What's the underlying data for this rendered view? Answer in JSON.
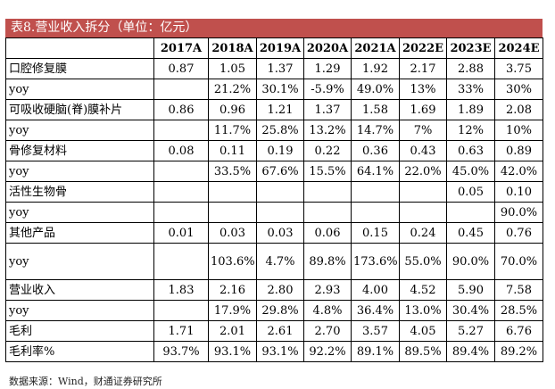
{
  "title": "表8.营业收入拆分（单位：亿元）",
  "headers": [
    "",
    "2017A",
    "2018A",
    "2019A",
    "2020A",
    "2021A",
    "2022E",
    "2023E",
    "2024E"
  ],
  "rows": [
    {
      "label": "口腔修复膜",
      "values": [
        "0.87",
        "1.05",
        "1.37",
        "1.29",
        "1.92",
        "2.17",
        "2.88",
        "3.75"
      ]
    },
    {
      "label": "yoy",
      "values": [
        "",
        "21.2%",
        "30.1%",
        "-5.9%",
        "49.0%",
        "13%",
        "33%",
        "30%"
      ]
    },
    {
      "label": "可吸收硬脑(脊)膜补片",
      "values": [
        "0.86",
        "0.96",
        "1.21",
        "1.37",
        "1.58",
        "1.69",
        "1.89",
        "2.08"
      ]
    },
    {
      "label": "yoy",
      "values": [
        "",
        "11.7%",
        "25.8%",
        "13.2%",
        "14.7%",
        "7%",
        "12%",
        "10%"
      ]
    },
    {
      "label": "骨修复材料",
      "values": [
        "0.08",
        "0.11",
        "0.19",
        "0.22",
        "0.36",
        "0.43",
        "0.63",
        "0.89"
      ]
    },
    {
      "label": "yoy",
      "values": [
        "",
        "33.5%",
        "67.6%",
        "15.5%",
        "64.1%",
        "22.0%",
        "45.0%",
        "42.0%"
      ]
    },
    {
      "label": "活性生物骨",
      "values": [
        "",
        "",
        "",
        "",
        "",
        "",
        "0.05",
        "0.10"
      ]
    },
    {
      "label": "yoy",
      "values": [
        "",
        "",
        "",
        "",
        "",
        "",
        "",
        "90.0%"
      ]
    },
    {
      "label": "其他产品",
      "values": [
        "0.01",
        "0.03",
        "0.03",
        "0.06",
        "0.15",
        "0.24",
        "0.45",
        "0.76"
      ]
    },
    {
      "label": "yoy",
      "values": [
        "",
        "103.6%",
        "4.7%",
        "89.8%",
        "173.6%",
        "55.0%",
        "90.0%",
        "70.0%"
      ]
    },
    {
      "label": "营业收入",
      "values": [
        "1.83",
        "2.16",
        "2.80",
        "2.93",
        "4.00",
        "4.52",
        "5.90",
        "7.58"
      ]
    },
    {
      "label": "yoy",
      "values": [
        "",
        "17.9%",
        "29.8%",
        "4.8%",
        "36.4%",
        "13.0%",
        "30.4%",
        "28.5%"
      ]
    },
    {
      "label": "毛利",
      "values": [
        "1.71",
        "2.01",
        "2.61",
        "2.70",
        "3.57",
        "4.05",
        "5.27",
        "6.76"
      ]
    },
    {
      "label": "毛利率%",
      "values": [
        "93.7%",
        "93.1%",
        "93.1%",
        "92.2%",
        "89.1%",
        "89.5%",
        "89.4%",
        "89.2%"
      ]
    }
  ],
  "source": "数据来源：Wind，财通证券研究所",
  "colors": {
    "title_bg": "#c0504d",
    "title_text": "#ffffff"
  }
}
